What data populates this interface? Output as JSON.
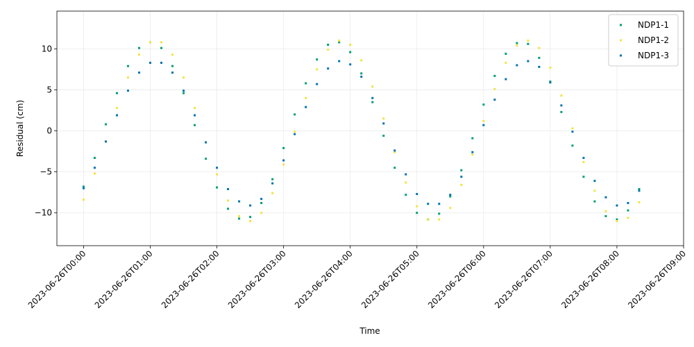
{
  "chart_data": {
    "type": "scatter",
    "xlabel": "Time",
    "ylabel": "Residual (cm)",
    "x": [
      "2023-06-26T00:00",
      "2023-06-26T00:10",
      "2023-06-26T00:20",
      "2023-06-26T00:30",
      "2023-06-26T00:40",
      "2023-06-26T00:50",
      "2023-06-26T01:00",
      "2023-06-26T01:10",
      "2023-06-26T01:20",
      "2023-06-26T01:30",
      "2023-06-26T01:40",
      "2023-06-26T01:50",
      "2023-06-26T02:00",
      "2023-06-26T02:10",
      "2023-06-26T02:20",
      "2023-06-26T02:30",
      "2023-06-26T02:40",
      "2023-06-26T02:50",
      "2023-06-26T03:00",
      "2023-06-26T03:10",
      "2023-06-26T03:20",
      "2023-06-26T03:30",
      "2023-06-26T03:40",
      "2023-06-26T03:50",
      "2023-06-26T04:00",
      "2023-06-26T04:10",
      "2023-06-26T04:20",
      "2023-06-26T04:30",
      "2023-06-26T04:40",
      "2023-06-26T04:50",
      "2023-06-26T05:00",
      "2023-06-26T05:10",
      "2023-06-26T05:20",
      "2023-06-26T05:30",
      "2023-06-26T05:40",
      "2023-06-26T05:50",
      "2023-06-26T06:00",
      "2023-06-26T06:10",
      "2023-06-26T06:20",
      "2023-06-26T06:30",
      "2023-06-26T06:40",
      "2023-06-26T06:50",
      "2023-06-26T07:00",
      "2023-06-26T07:10",
      "2023-06-26T07:20",
      "2023-06-26T07:30",
      "2023-06-26T07:40",
      "2023-06-26T07:50",
      "2023-06-26T08:00",
      "2023-06-26T08:10",
      "2023-06-26T08:20"
    ],
    "series": [
      {
        "name": "NDP1-1",
        "color": "#009e73",
        "values": [
          -6.8,
          -3.3,
          0.8,
          4.6,
          7.9,
          10.1,
          10.8,
          10.1,
          7.9,
          4.6,
          0.7,
          -3.4,
          -6.9,
          -9.5,
          -10.7,
          -10.5,
          -8.8,
          -5.9,
          -2.1,
          2.0,
          5.8,
          8.7,
          10.5,
          10.8,
          9.6,
          7.0,
          3.5,
          -0.6,
          -4.5,
          -7.8,
          -10.0,
          -10.8,
          -10.1,
          -8.0,
          -4.8,
          -0.9,
          3.2,
          6.7,
          9.4,
          10.7,
          10.6,
          8.9,
          6.0,
          2.3,
          -1.8,
          -5.6,
          -8.6,
          -10.4,
          -10.8,
          -9.7,
          -7.1
        ]
      },
      {
        "name": "NDP1-2",
        "color": "#f0e442",
        "values": [
          -8.4,
          -5.2,
          -1.3,
          2.8,
          6.5,
          9.3,
          10.8,
          10.8,
          9.3,
          6.5,
          2.8,
          -1.4,
          -5.3,
          -8.5,
          -10.4,
          -11.0,
          -10.0,
          -7.6,
          -4.1,
          -0.1,
          4.0,
          7.5,
          9.9,
          11.0,
          10.5,
          8.6,
          5.4,
          1.5,
          -2.6,
          -6.3,
          -9.2,
          -10.8,
          -10.8,
          -9.4,
          -6.6,
          -2.9,
          1.2,
          5.1,
          8.3,
          10.4,
          11.0,
          10.1,
          7.7,
          4.3,
          0.3,
          -3.8,
          -7.3,
          -9.8,
          -11.0,
          -10.6,
          -8.7
        ]
      },
      {
        "name": "NDP1-3",
        "color": "#0072b2",
        "values": [
          -7.0,
          -4.5,
          -1.3,
          1.9,
          4.9,
          7.1,
          8.3,
          8.3,
          7.1,
          4.9,
          1.9,
          -1.4,
          -4.5,
          -7.1,
          -8.6,
          -9.1,
          -8.3,
          -6.4,
          -3.6,
          -0.4,
          2.9,
          5.7,
          7.6,
          8.5,
          8.1,
          6.6,
          4.0,
          0.9,
          -2.4,
          -5.3,
          -7.7,
          -8.9,
          -8.9,
          -7.8,
          -5.6,
          -2.6,
          0.7,
          3.8,
          6.3,
          8.0,
          8.5,
          7.8,
          5.9,
          3.1,
          -0.1,
          -3.3,
          -6.1,
          -8.1,
          -9.1,
          -8.8,
          -7.3
        ]
      }
    ],
    "xlim": [
      "2023-06-25T23:36",
      "2023-06-26T09:00"
    ],
    "xticks": [
      "2023-06-26T00:00",
      "2023-06-26T01:00",
      "2023-06-26T02:00",
      "2023-06-26T03:00",
      "2023-06-26T04:00",
      "2023-06-26T05:00",
      "2023-06-26T06:00",
      "2023-06-26T07:00",
      "2023-06-26T08:00",
      "2023-06-26T09:00"
    ],
    "ylim": [
      -14,
      14.6
    ],
    "yticks": [
      {
        "value": -10,
        "label": "−10"
      },
      {
        "value": -5,
        "label": "−5"
      },
      0,
      5,
      10
    ],
    "grid": true,
    "legend": "upper right"
  }
}
